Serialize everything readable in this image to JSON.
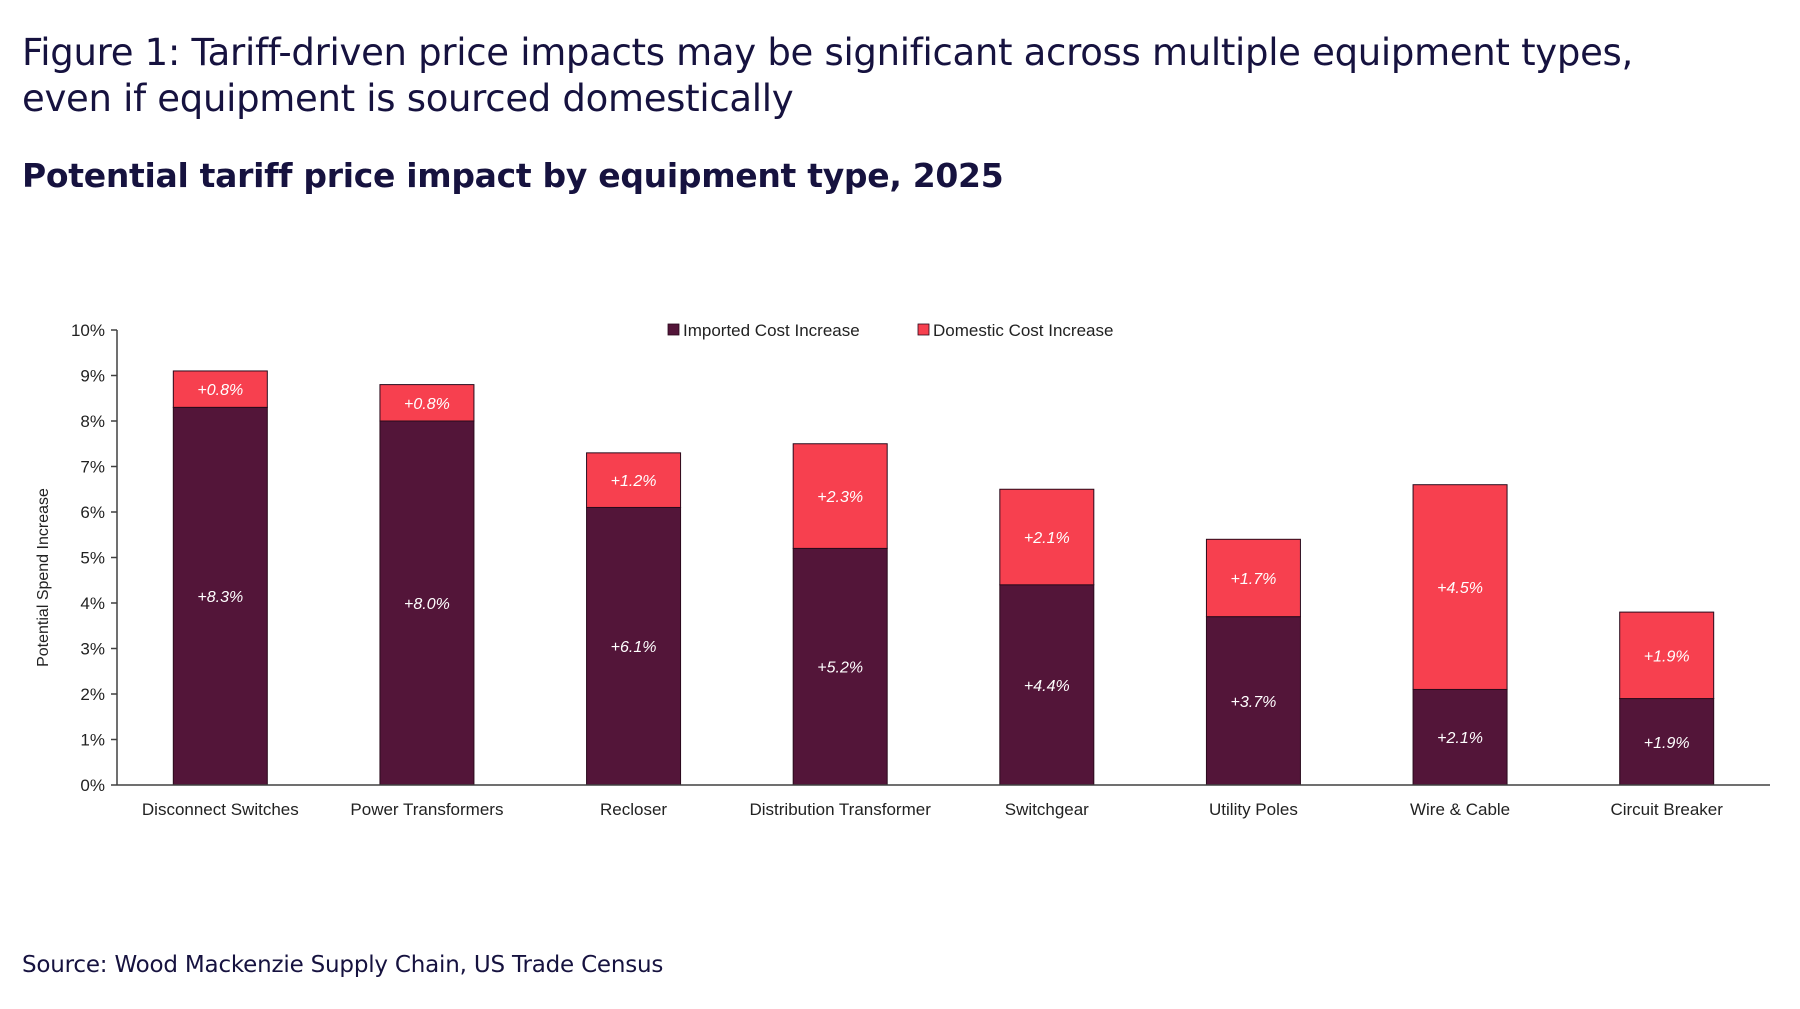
{
  "figure": {
    "title": "Figure 1: Tariff-driven price impacts may be significant across multiple equipment types, even if equipment is sourced domestically",
    "subtitle": "Potential tariff price impact by equipment type, 2025",
    "source": "Source: Wood Mackenzie Supply Chain, US Trade Census"
  },
  "chart_data": {
    "type": "bar",
    "stacked": true,
    "categories": [
      "Disconnect Switches",
      "Power Transformers",
      "Recloser",
      "Distribution Transformer",
      "Switchgear",
      "Utility Poles",
      "Wire & Cable",
      "Circuit Breaker"
    ],
    "series": [
      {
        "name": "Imported Cost Increase",
        "color": "#531539",
        "values": [
          8.3,
          8.0,
          6.1,
          5.2,
          4.4,
          3.7,
          2.1,
          1.9
        ],
        "labels": [
          "+8.3%",
          "+8.0%",
          "+6.1%",
          "+5.2%",
          "+4.4%",
          "+3.7%",
          "+2.1%",
          "+1.9%"
        ]
      },
      {
        "name": "Domestic Cost Increase",
        "color": "#f7404f",
        "values": [
          0.8,
          0.8,
          1.2,
          2.3,
          2.1,
          1.7,
          4.5,
          1.9
        ],
        "labels": [
          "+0.8%",
          "+0.8%",
          "+1.2%",
          "+2.3%",
          "+2.1%",
          "+1.7%",
          "+4.5%",
          "+1.9%"
        ]
      }
    ],
    "ylabel": "Potential Spend Increase",
    "ylim": [
      0,
      10
    ],
    "yticks": [
      "0%",
      "1%",
      "2%",
      "3%",
      "4%",
      "5%",
      "6%",
      "7%",
      "8%",
      "9%",
      "10%"
    ],
    "legend_position": "top-center",
    "grid": false
  }
}
